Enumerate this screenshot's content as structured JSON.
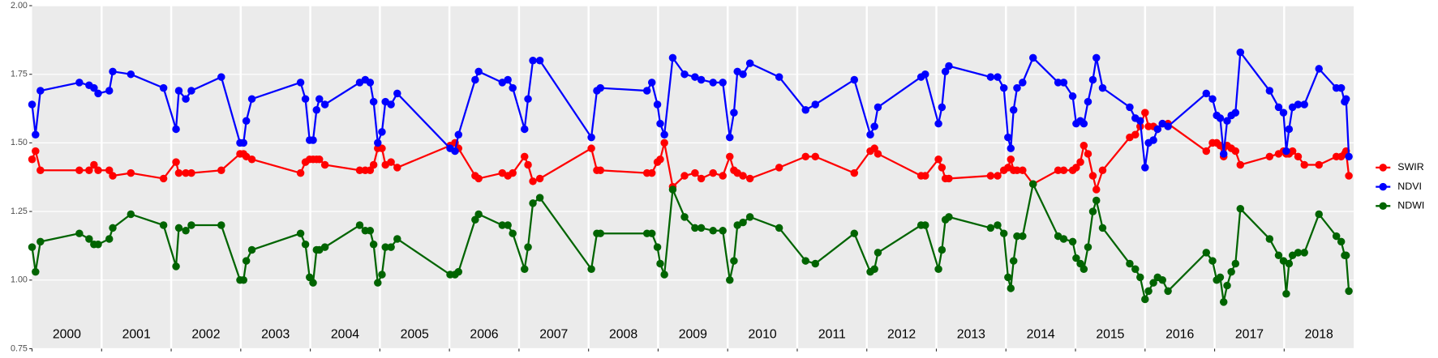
{
  "chart_data": {
    "type": "line",
    "x": [
      2000.0,
      2000.05,
      2000.12,
      2000.68,
      2000.82,
      2000.89,
      2000.95,
      2001.11,
      2001.16,
      2001.42,
      2001.89,
      2002.07,
      2002.11,
      2002.21,
      2002.29,
      2002.72,
      2002.99,
      2003.04,
      2003.08,
      2003.16,
      2003.86,
      2003.93,
      2003.99,
      2004.04,
      2004.09,
      2004.13,
      2004.21,
      2004.71,
      2004.79,
      2004.86,
      2004.91,
      2004.97,
      2005.03,
      2005.08,
      2005.16,
      2005.25,
      2006.01,
      2006.08,
      2006.13,
      2006.37,
      2006.42,
      2006.76,
      2006.84,
      2006.91,
      2007.08,
      2007.13,
      2007.2,
      2007.3,
      2008.04,
      2008.12,
      2008.17,
      2008.84,
      2008.91,
      2008.99,
      2009.03,
      2009.09,
      2009.21,
      2009.38,
      2009.53,
      2009.62,
      2009.79,
      2009.93,
      2010.03,
      2010.09,
      2010.14,
      2010.22,
      2010.32,
      2010.74,
      2011.12,
      2011.26,
      2011.82,
      2012.05,
      2012.11,
      2012.16,
      2012.78,
      2012.84,
      2013.03,
      2013.08,
      2013.13,
      2013.18,
      2013.78,
      2013.88,
      2013.97,
      2014.03,
      2014.07,
      2014.11,
      2014.16,
      2014.24,
      2014.39,
      2014.75,
      2014.83,
      2014.96,
      2015.01,
      2015.07,
      2015.12,
      2015.18,
      2015.25,
      2015.3,
      2015.39,
      2015.78,
      2015.86,
      2015.93,
      2016.0,
      2016.05,
      2016.12,
      2016.18,
      2016.25,
      2016.33,
      2016.88,
      2016.97,
      2017.03,
      2017.08,
      2017.13,
      2017.18,
      2017.24,
      2017.3,
      2017.37,
      2017.79,
      2017.92,
      2017.99,
      2018.03,
      2018.07,
      2018.12,
      2018.2,
      2018.29,
      2018.5,
      2018.75,
      2018.82,
      2018.87,
      2018.89,
      2018.93
    ],
    "series": [
      {
        "name": "SWIR",
        "color": "#ff0000",
        "values": [
          1.44,
          1.47,
          1.4,
          1.4,
          1.4,
          1.42,
          1.4,
          1.4,
          1.38,
          1.39,
          1.37,
          1.43,
          1.39,
          1.39,
          1.39,
          1.4,
          1.46,
          1.46,
          1.45,
          1.44,
          1.39,
          1.43,
          1.44,
          1.44,
          1.44,
          1.44,
          1.42,
          1.4,
          1.4,
          1.4,
          1.42,
          1.48,
          1.48,
          1.42,
          1.43,
          1.41,
          1.49,
          1.5,
          1.48,
          1.38,
          1.37,
          1.39,
          1.38,
          1.39,
          1.45,
          1.42,
          1.36,
          1.37,
          1.48,
          1.4,
          1.4,
          1.39,
          1.39,
          1.43,
          1.44,
          1.5,
          1.34,
          1.38,
          1.39,
          1.37,
          1.39,
          1.38,
          1.45,
          1.4,
          1.39,
          1.38,
          1.37,
          1.41,
          1.45,
          1.45,
          1.39,
          1.47,
          1.48,
          1.46,
          1.38,
          1.38,
          1.44,
          1.41,
          1.37,
          1.37,
          1.38,
          1.38,
          1.4,
          1.41,
          1.44,
          1.4,
          1.4,
          1.4,
          1.35,
          1.4,
          1.4,
          1.4,
          1.41,
          1.43,
          1.49,
          1.46,
          1.38,
          1.33,
          1.4,
          1.52,
          1.53,
          1.56,
          1.61,
          1.56,
          1.56,
          1.55,
          1.57,
          1.57,
          1.47,
          1.5,
          1.5,
          1.49,
          1.45,
          1.49,
          1.48,
          1.47,
          1.42,
          1.45,
          1.46,
          1.47,
          1.46,
          1.46,
          1.47,
          1.45,
          1.42,
          1.42,
          1.45,
          1.45,
          1.46,
          1.47,
          1.38
        ]
      },
      {
        "name": "NDVI",
        "color": "#0000ff",
        "values": [
          1.64,
          1.53,
          1.69,
          1.72,
          1.71,
          1.7,
          1.68,
          1.69,
          1.76,
          1.75,
          1.7,
          1.55,
          1.69,
          1.66,
          1.69,
          1.74,
          1.5,
          1.5,
          1.58,
          1.66,
          1.72,
          1.66,
          1.51,
          1.51,
          1.62,
          1.66,
          1.64,
          1.72,
          1.73,
          1.72,
          1.65,
          1.5,
          1.54,
          1.65,
          1.64,
          1.68,
          1.48,
          1.47,
          1.53,
          1.73,
          1.76,
          1.72,
          1.73,
          1.7,
          1.55,
          1.66,
          1.8,
          1.8,
          1.52,
          1.69,
          1.7,
          1.69,
          1.72,
          1.64,
          1.57,
          1.53,
          1.81,
          1.75,
          1.74,
          1.73,
          1.72,
          1.72,
          1.52,
          1.61,
          1.76,
          1.75,
          1.79,
          1.74,
          1.62,
          1.64,
          1.73,
          1.53,
          1.56,
          1.63,
          1.74,
          1.75,
          1.57,
          1.63,
          1.76,
          1.78,
          1.74,
          1.74,
          1.7,
          1.52,
          1.48,
          1.62,
          1.7,
          1.72,
          1.81,
          1.72,
          1.72,
          1.67,
          1.57,
          1.58,
          1.57,
          1.65,
          1.73,
          1.81,
          1.7,
          1.63,
          1.59,
          1.58,
          1.41,
          1.5,
          1.51,
          1.55,
          1.57,
          1.56,
          1.68,
          1.66,
          1.6,
          1.59,
          1.46,
          1.58,
          1.6,
          1.61,
          1.83,
          1.69,
          1.63,
          1.61,
          1.47,
          1.55,
          1.63,
          1.64,
          1.64,
          1.77,
          1.7,
          1.7,
          1.65,
          1.66,
          1.45
        ]
      },
      {
        "name": "NDWI",
        "color": "#006400",
        "values": [
          1.12,
          1.03,
          1.14,
          1.17,
          1.15,
          1.13,
          1.13,
          1.15,
          1.19,
          1.24,
          1.2,
          1.05,
          1.19,
          1.18,
          1.2,
          1.2,
          1.0,
          1.0,
          1.07,
          1.11,
          1.17,
          1.13,
          1.01,
          0.99,
          1.11,
          1.11,
          1.12,
          1.2,
          1.18,
          1.18,
          1.13,
          0.99,
          1.02,
          1.12,
          1.12,
          1.15,
          1.02,
          1.02,
          1.03,
          1.22,
          1.24,
          1.2,
          1.2,
          1.17,
          1.04,
          1.12,
          1.28,
          1.3,
          1.04,
          1.17,
          1.17,
          1.17,
          1.17,
          1.12,
          1.06,
          1.02,
          1.33,
          1.23,
          1.19,
          1.19,
          1.18,
          1.18,
          1.0,
          1.07,
          1.2,
          1.21,
          1.23,
          1.19,
          1.07,
          1.06,
          1.17,
          1.03,
          1.04,
          1.1,
          1.2,
          1.2,
          1.04,
          1.11,
          1.22,
          1.23,
          1.19,
          1.2,
          1.17,
          1.01,
          0.97,
          1.07,
          1.16,
          1.16,
          1.35,
          1.16,
          1.15,
          1.14,
          1.08,
          1.06,
          1.04,
          1.12,
          1.25,
          1.29,
          1.19,
          1.06,
          1.04,
          1.01,
          0.93,
          0.96,
          0.99,
          1.01,
          1.0,
          0.96,
          1.1,
          1.07,
          1.0,
          1.01,
          0.92,
          0.98,
          1.03,
          1.06,
          1.26,
          1.15,
          1.09,
          1.07,
          0.95,
          1.06,
          1.09,
          1.1,
          1.1,
          1.24,
          1.16,
          1.14,
          1.09,
          1.09,
          0.96
        ]
      }
    ],
    "xlim": [
      2000,
      2019
    ],
    "xticks": [
      2000,
      2001,
      2002,
      2003,
      2004,
      2005,
      2006,
      2007,
      2008,
      2009,
      2010,
      2011,
      2012,
      2013,
      2014,
      2015,
      2016,
      2017,
      2018
    ],
    "year_labels": [
      "2000",
      "2001",
      "2002",
      "2003",
      "2004",
      "2005",
      "2006",
      "2007",
      "2008",
      "2009",
      "2010",
      "2011",
      "2012",
      "2013",
      "2014",
      "2015",
      "2016",
      "2017",
      "2018"
    ],
    "ylim": [
      0.75,
      2.0
    ],
    "yticks": [
      0.75,
      {
        "value": 1.0,
        "label": "1.00"
      },
      1.25,
      {
        "value": 1.5,
        "label": "1.50"
      },
      1.75,
      {
        "value": 2.0,
        "label": "2.00"
      }
    ],
    "grid": true,
    "legend": "right"
  }
}
